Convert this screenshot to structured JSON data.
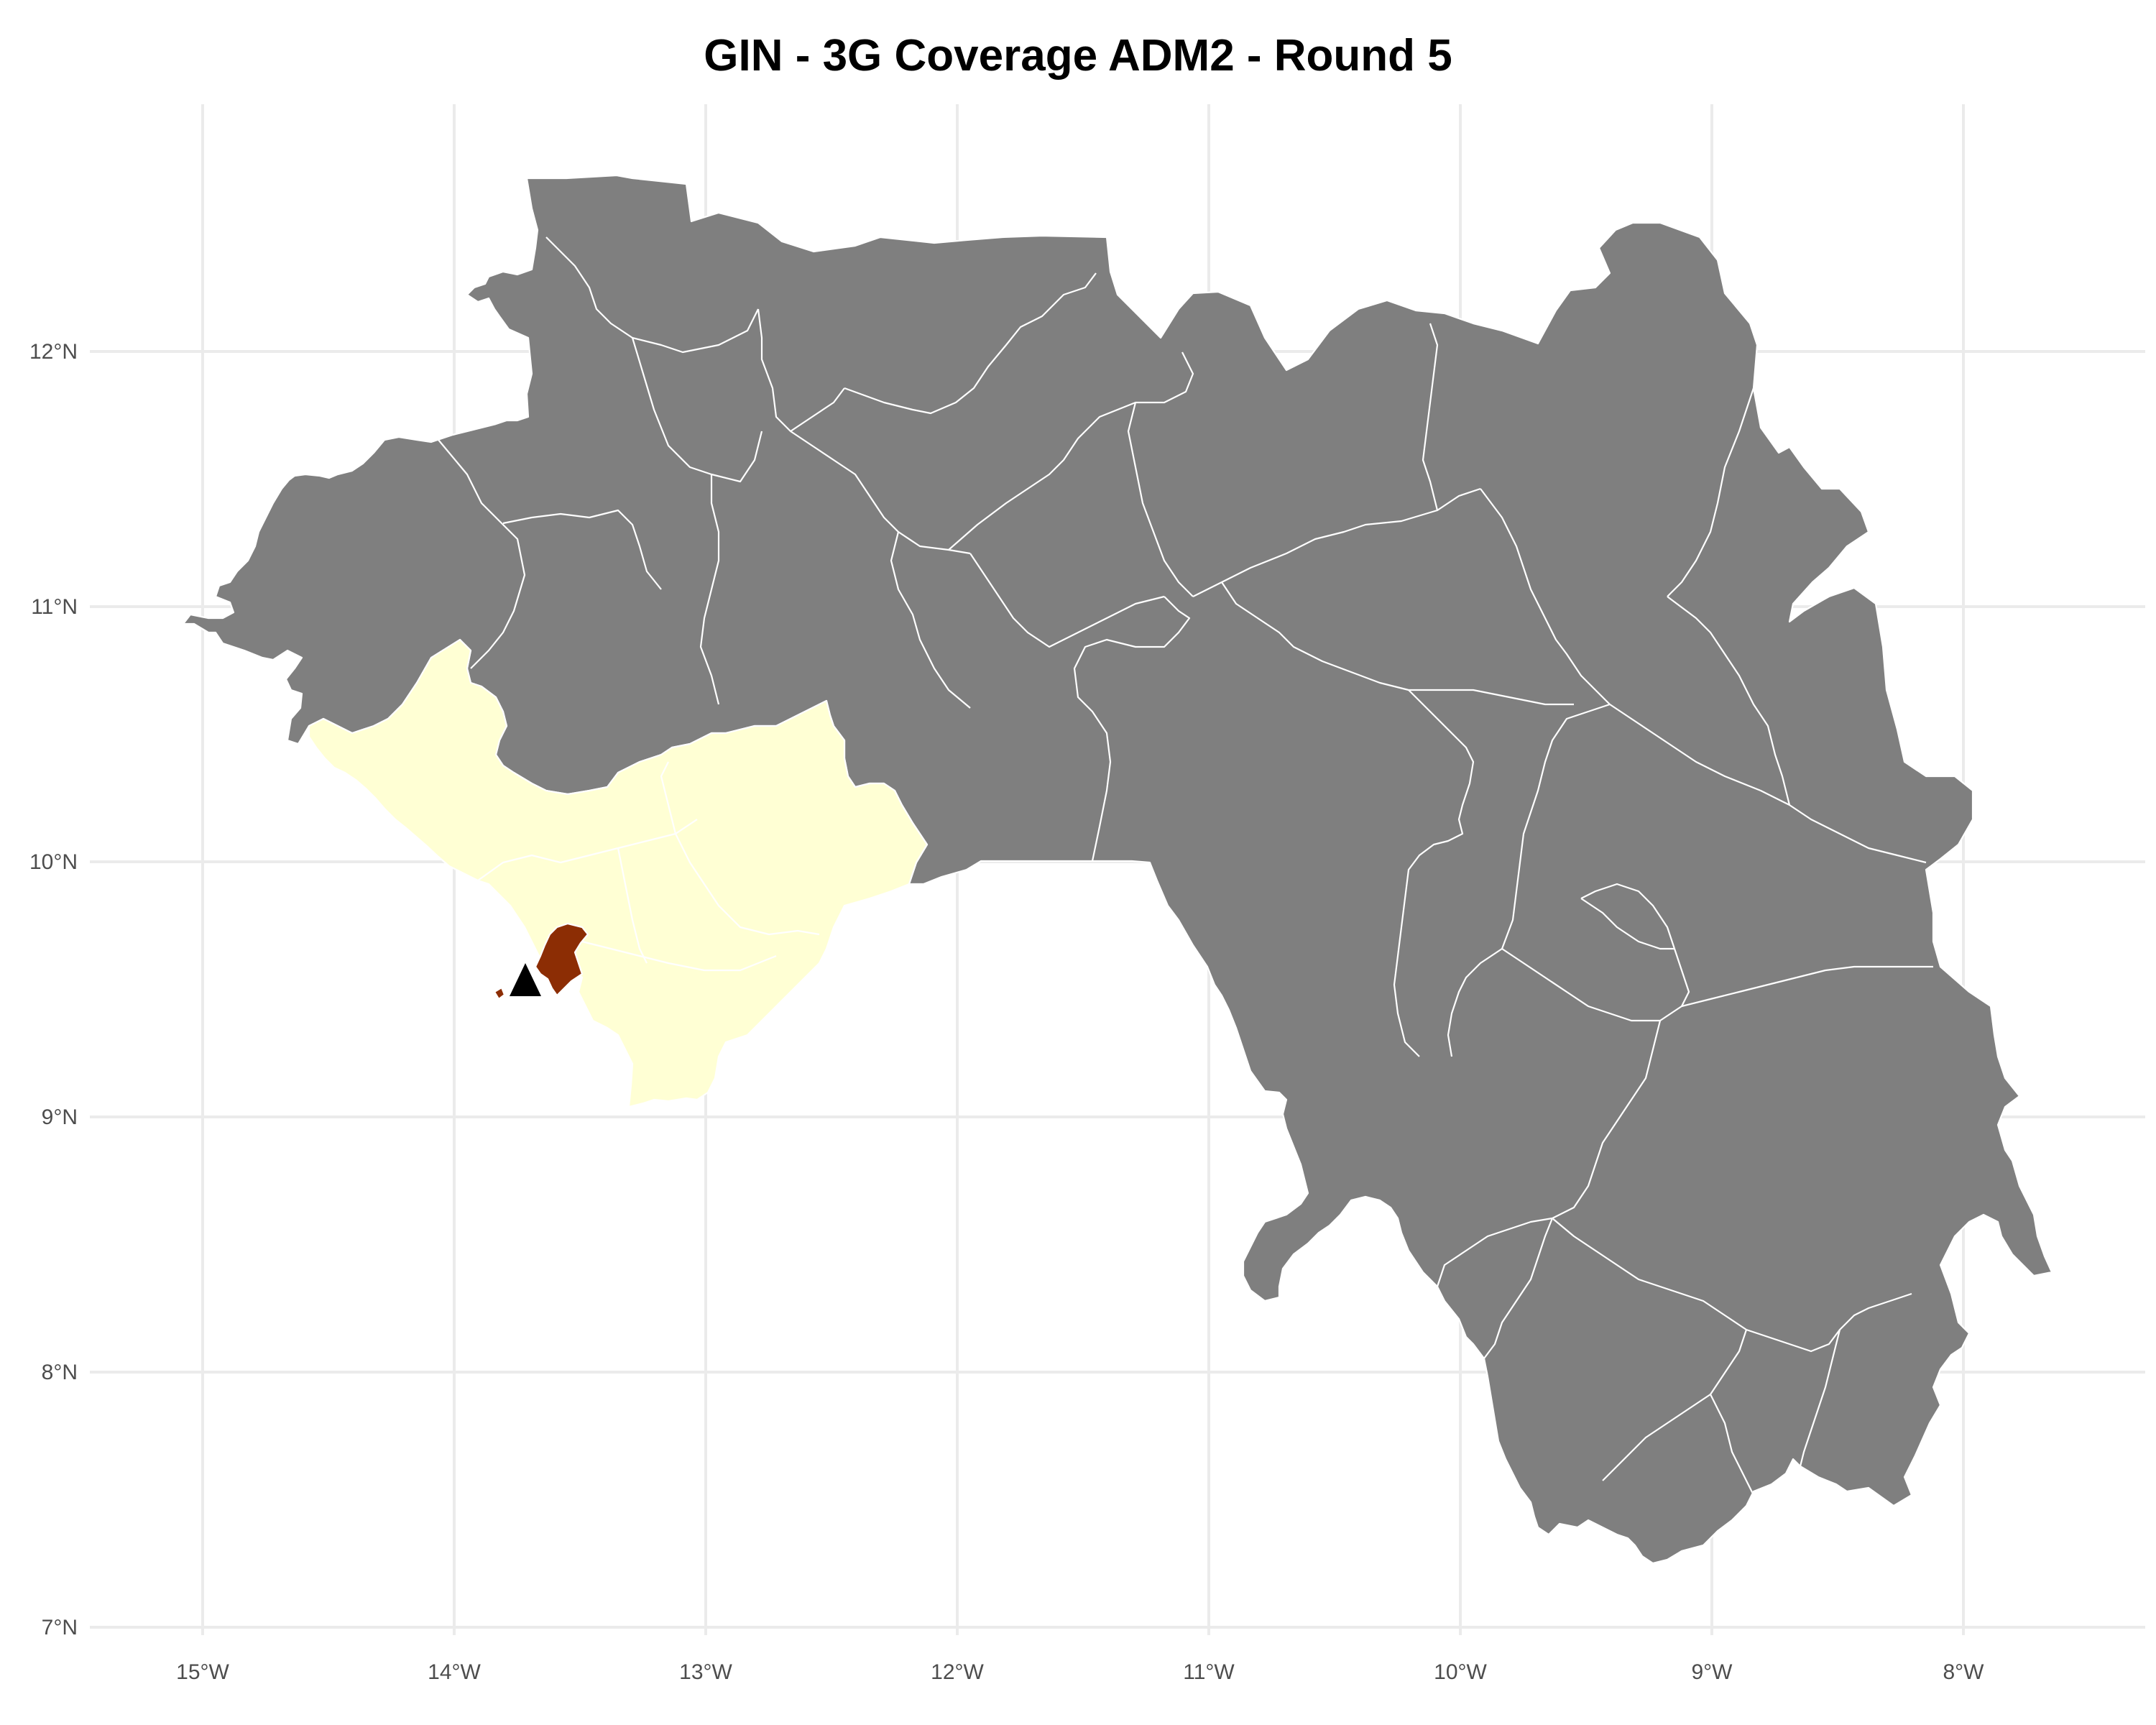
{
  "map": {
    "title": "GIN - 3G Coverage ADM2 - Round 5",
    "lon_ticks": [
      "15°W",
      "14°W",
      "13°W",
      "12°W",
      "11°W",
      "10°W",
      "9°W",
      "8°W"
    ],
    "lat_ticks": [
      "12°N",
      "11°N",
      "10°N",
      "9°N",
      "8°N",
      "7°N"
    ],
    "colors": {
      "no_data": "#7f7f7f",
      "low_coverage": "#ffffd4",
      "high_coverage": "#8c2d04",
      "marker": "#000000",
      "grid": "#ebebeb",
      "background": "#ffffff"
    },
    "marker": {
      "shape": "triangle",
      "lon": -13.7,
      "lat": 9.52
    }
  }
}
